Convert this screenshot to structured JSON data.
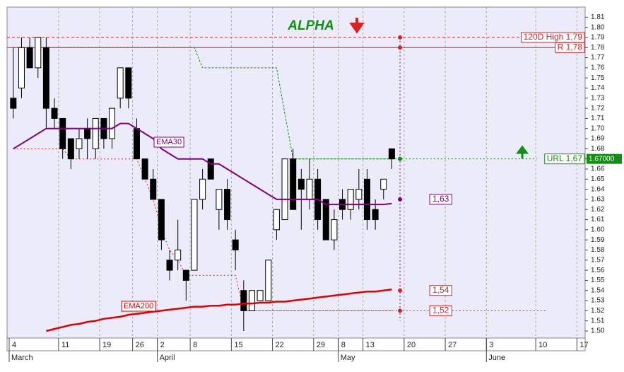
{
  "chart_data": {
    "type": "candlestick",
    "annotation": "ALPHA",
    "categories": [
      "4",
      null,
      null,
      null,
      null,
      null,
      "11",
      null,
      null,
      null,
      null,
      "19",
      null,
      null,
      null,
      "26",
      null,
      null,
      "2",
      null,
      null,
      null,
      "8",
      null,
      null,
      null,
      null,
      "15",
      null,
      null,
      null,
      null,
      "22",
      null,
      null,
      null,
      null,
      "29",
      null,
      null,
      "8",
      null,
      null,
      "13",
      null,
      null,
      null,
      null,
      "20",
      null,
      null,
      null,
      null,
      "27",
      null,
      null,
      null,
      null,
      "3",
      null,
      null,
      null,
      null,
      null,
      "10",
      null,
      null,
      null,
      null,
      "17"
    ],
    "months": [
      "March",
      null,
      null,
      null,
      null,
      null,
      null,
      null,
      null,
      null,
      null,
      null,
      null,
      null,
      null,
      null,
      null,
      null,
      "April",
      null,
      null,
      null,
      null,
      null,
      null,
      null,
      null,
      null,
      null,
      null,
      null,
      null,
      null,
      null,
      null,
      null,
      null,
      null,
      null,
      null,
      "May",
      null,
      null,
      null,
      null,
      null,
      null,
      null,
      null,
      null,
      null,
      null,
      null,
      null,
      null,
      null,
      null,
      null,
      "June",
      null,
      null,
      null,
      null,
      null,
      null,
      null,
      null,
      null,
      null,
      null
    ],
    "open": [
      1.73,
      1.74,
      1.78,
      1.76,
      1.78,
      1.72,
      1.71,
      1.69,
      1.68,
      1.7,
      1.68,
      1.71,
      1.69,
      1.73,
      1.76,
      1.7,
      1.67,
      1.65,
      1.63,
      1.57,
      1.57,
      1.56,
      1.56,
      1.63,
      1.67,
      1.62,
      1.64,
      1.59,
      1.54,
      1.52,
      1.53,
      1.53,
      1.6,
      1.61,
      1.67,
      1.65,
      1.63,
      1.65,
      1.63,
      1.59,
      1.63,
      1.62,
      1.63,
      1.65,
      1.62,
      1.64,
      1.68,
      null,
      null,
      null,
      null,
      null,
      null,
      null,
      null,
      null,
      null,
      null,
      null,
      null,
      null,
      null,
      null,
      null,
      null,
      null,
      null,
      null,
      null,
      null
    ],
    "high": [
      1.78,
      1.79,
      1.79,
      1.79,
      1.79,
      1.73,
      1.71,
      1.69,
      1.7,
      1.71,
      1.71,
      1.71,
      1.72,
      1.76,
      1.76,
      1.71,
      1.67,
      1.66,
      1.63,
      1.58,
      1.61,
      1.56,
      1.63,
      1.66,
      1.67,
      1.64,
      1.65,
      1.6,
      1.55,
      1.54,
      1.54,
      1.57,
      1.62,
      1.67,
      1.68,
      1.66,
      1.67,
      1.66,
      1.63,
      1.62,
      1.64,
      1.64,
      1.66,
      1.66,
      1.63,
      1.65,
      1.68,
      null,
      null,
      null,
      null,
      null,
      null,
      null,
      null,
      null,
      null,
      null,
      null,
      null,
      null,
      null,
      null,
      null,
      null,
      null,
      null,
      null,
      null,
      null
    ],
    "low": [
      1.71,
      1.73,
      1.76,
      1.75,
      1.7,
      1.7,
      1.67,
      1.66,
      1.67,
      1.67,
      1.67,
      1.68,
      1.68,
      1.72,
      1.72,
      1.67,
      1.65,
      1.63,
      1.58,
      1.55,
      1.56,
      1.53,
      1.56,
      1.62,
      1.65,
      1.6,
      1.6,
      1.56,
      1.5,
      1.52,
      1.53,
      1.53,
      1.59,
      1.61,
      1.62,
      1.6,
      1.62,
      1.6,
      1.59,
      1.58,
      1.61,
      1.61,
      1.62,
      1.6,
      1.6,
      1.63,
      1.66,
      null,
      null,
      null,
      null,
      null,
      null,
      null,
      null,
      null,
      null,
      null,
      null,
      null,
      null,
      null,
      null,
      null,
      null,
      null,
      null,
      null,
      null,
      null
    ],
    "close": [
      1.72,
      1.78,
      1.76,
      1.79,
      1.72,
      1.71,
      1.68,
      1.67,
      1.69,
      1.69,
      1.71,
      1.69,
      1.72,
      1.76,
      1.73,
      1.67,
      1.65,
      1.63,
      1.59,
      1.56,
      1.58,
      1.55,
      1.63,
      1.65,
      1.65,
      1.64,
      1.61,
      1.58,
      1.52,
      1.54,
      1.54,
      1.57,
      1.62,
      1.67,
      1.62,
      1.64,
      1.65,
      1.61,
      1.59,
      1.61,
      1.62,
      1.64,
      1.64,
      1.61,
      1.61,
      1.65,
      1.67,
      null,
      null,
      null,
      null,
      null,
      null,
      null,
      null,
      null,
      null,
      null,
      null,
      null,
      null,
      null,
      null,
      null,
      null,
      null,
      null,
      null,
      null,
      null
    ],
    "up_color": "#ffffff",
    "down_color": "#000000",
    "series": [
      {
        "name": "EMA30",
        "color": "#800080",
        "values": [
          1.68,
          1.685,
          1.69,
          1.695,
          1.7,
          1.7,
          1.7,
          1.7,
          1.7,
          1.7,
          1.7,
          1.7,
          1.7,
          1.705,
          1.705,
          1.7,
          1.695,
          1.69,
          1.68,
          1.675,
          1.67,
          1.67,
          1.67,
          1.67,
          1.665,
          1.665,
          1.66,
          1.655,
          1.65,
          1.645,
          1.64,
          1.635,
          1.63,
          1.63,
          1.63,
          1.63,
          1.63,
          1.63,
          1.625,
          1.625,
          1.625,
          1.625,
          1.625,
          1.625,
          1.625,
          1.625,
          1.626,
          null,
          null,
          null,
          null,
          null,
          null,
          null,
          null,
          null,
          null,
          null,
          null,
          null,
          null,
          null,
          null,
          null,
          null,
          null,
          null,
          null,
          null,
          null
        ]
      },
      {
        "name": "EMA200",
        "color": "#e00000",
        "values": [
          null,
          null,
          null,
          null,
          1.5,
          1.502,
          1.504,
          1.506,
          1.507,
          1.509,
          1.51,
          1.512,
          1.513,
          1.514,
          1.516,
          1.517,
          1.518,
          1.519,
          1.52,
          1.521,
          1.522,
          1.523,
          1.524,
          1.524,
          1.525,
          1.525,
          1.526,
          1.526,
          1.527,
          1.527,
          1.528,
          1.528,
          1.529,
          1.529,
          1.53,
          1.531,
          1.532,
          1.533,
          1.534,
          1.535,
          1.536,
          1.537,
          1.538,
          1.539,
          1.539,
          1.54,
          1.541,
          null,
          null,
          null,
          null,
          null,
          null,
          null,
          null,
          null,
          null,
          null,
          null,
          null,
          null,
          null,
          null,
          null,
          null,
          null,
          null,
          null,
          null,
          null
        ]
      }
    ],
    "stops": [
      {
        "color": "#109010",
        "values": [
          1.78,
          1.78,
          1.78,
          1.78,
          1.78,
          1.78,
          1.78,
          1.78,
          1.78,
          1.78,
          1.78,
          1.78,
          1.78,
          1.78,
          1.78,
          1.78,
          1.78,
          1.78,
          1.78,
          1.78,
          1.78,
          1.78,
          1.78,
          1.76,
          1.76,
          1.76,
          1.76,
          1.76,
          1.76,
          1.76,
          1.76,
          1.76,
          1.76,
          1.715,
          1.67,
          1.67,
          1.67,
          1.67,
          1.67,
          1.67,
          1.67,
          1.67,
          1.67,
          1.67,
          1.67,
          1.67,
          1.67,
          null,
          null,
          null,
          null,
          null,
          null,
          null,
          null,
          null,
          null,
          null,
          null,
          null,
          null,
          null,
          null,
          null,
          null,
          null,
          null,
          null,
          null,
          null
        ]
      },
      {
        "color": "#e02020",
        "values": [
          1.68,
          1.68,
          1.68,
          1.68,
          1.68,
          1.68,
          1.68,
          1.67,
          1.67,
          1.67,
          1.67,
          1.67,
          1.67,
          1.67,
          1.67,
          1.67,
          1.65,
          1.63,
          1.6,
          1.58,
          1.57,
          1.555,
          1.555,
          1.555,
          1.555,
          1.555,
          1.555,
          1.555,
          1.52,
          1.52,
          1.52,
          1.52,
          1.52,
          1.52,
          1.52,
          1.52,
          1.52,
          1.52,
          1.52,
          1.52,
          1.52,
          1.52,
          1.52,
          1.52,
          1.52,
          1.52,
          1.52,
          null,
          null,
          null,
          null,
          null,
          null,
          null,
          null,
          null,
          null,
          null,
          null,
          null,
          null,
          null,
          null,
          null,
          null,
          null,
          null,
          null,
          null,
          null
        ]
      }
    ],
    "levels": [
      {
        "label": "120D High 1,79",
        "value": 1.79,
        "color": "#e02020"
      },
      {
        "label": "R 1,78",
        "value": 1.78,
        "color": "#e02020"
      },
      {
        "label": "URL 1,67",
        "value": 1.67,
        "color": "#109010",
        "tag": "1.67000"
      }
    ],
    "markers": [
      {
        "label": "1,63",
        "value": 1.63,
        "color": "#800080"
      },
      {
        "label": "1,54",
        "value": 1.54,
        "color": "#e02020"
      },
      {
        "label": "1,52",
        "value": 1.52,
        "color": "#e02020"
      }
    ],
    "ylim": [
      1.493,
      1.82
    ],
    "yticks": [
      {
        "value": 1.5,
        "label": "1.50"
      },
      1.51,
      1.52,
      1.53,
      1.54,
      1.55,
      1.56,
      1.57,
      1.58,
      1.59,
      {
        "value": 1.6,
        "label": "1.60"
      },
      1.61,
      1.62,
      1.63,
      1.64,
      1.65,
      1.66,
      1.67,
      1.68,
      1.69,
      {
        "value": 1.7,
        "label": "1.70"
      },
      1.71,
      1.72,
      1.73,
      1.74,
      1.75,
      1.76,
      1.77,
      1.78,
      1.79,
      {
        "value": 1.8,
        "label": "1.80"
      },
      1.81
    ],
    "grid": true
  }
}
